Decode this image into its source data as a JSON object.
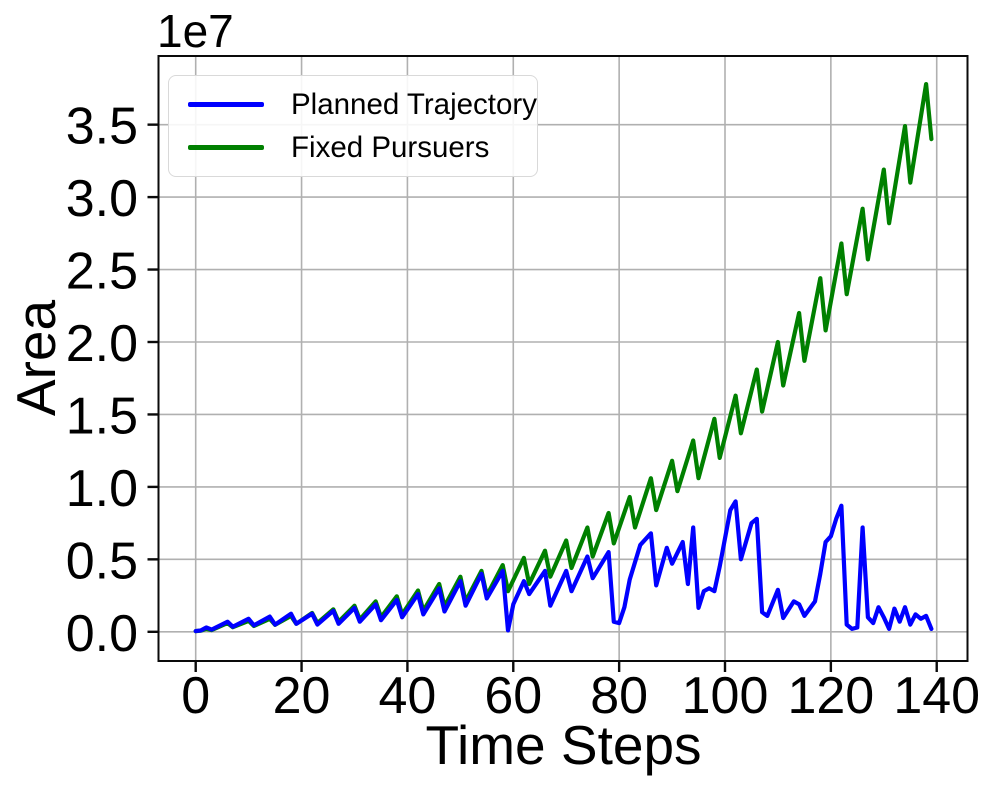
{
  "figure": {
    "background": "#ffffff",
    "offset_text": "1e7",
    "xlabel": "Time Steps",
    "ylabel": "Area"
  },
  "legend": {
    "position": "upper left",
    "items": [
      {
        "label": "Planned Trajectory",
        "color": "#0000ff"
      },
      {
        "label": "Fixed Pursuers",
        "color": "#008000"
      }
    ]
  },
  "chart_data": {
    "type": "line",
    "title": "",
    "xlabel": "Time Steps",
    "ylabel": "Area",
    "y_offset_multiplier": "1e7",
    "grid": true,
    "legend_position": "upper left",
    "xlim": [
      -7,
      146
    ],
    "ylim_1e7": [
      -0.2,
      3.97
    ],
    "xticks": [
      0,
      20,
      40,
      60,
      80,
      100,
      120,
      140
    ],
    "yticks_1e7": [
      0,
      0.5,
      1.0,
      1.5,
      2.0,
      2.5,
      3.0,
      3.5
    ],
    "ytick_labels": [
      "0.0",
      "0.5",
      "1.0",
      "1.5",
      "2.0",
      "2.5",
      "3.0",
      "3.5"
    ],
    "y_units_note": "series y-values are in units of 1e7 (Area)",
    "series": [
      {
        "name": "Planned Trajectory",
        "color": "#0000ff",
        "points_1e7": [
          [
            0,
            0.005
          ],
          [
            1,
            0.01
          ],
          [
            2,
            0.03
          ],
          [
            3,
            0.015
          ],
          [
            6,
            0.07
          ],
          [
            7,
            0.035
          ],
          [
            10,
            0.09
          ],
          [
            11,
            0.045
          ],
          [
            14,
            0.105
          ],
          [
            15,
            0.05
          ],
          [
            18,
            0.125
          ],
          [
            19,
            0.055
          ],
          [
            22,
            0.125
          ],
          [
            23,
            0.05
          ],
          [
            26,
            0.145
          ],
          [
            27,
            0.055
          ],
          [
            30,
            0.165
          ],
          [
            31,
            0.07
          ],
          [
            34,
            0.19
          ],
          [
            35,
            0.08
          ],
          [
            38,
            0.22
          ],
          [
            39,
            0.1
          ],
          [
            42,
            0.26
          ],
          [
            43,
            0.12
          ],
          [
            46,
            0.3
          ],
          [
            47,
            0.14
          ],
          [
            50,
            0.35
          ],
          [
            51,
            0.18
          ],
          [
            54,
            0.4
          ],
          [
            55,
            0.23
          ],
          [
            58,
            0.42
          ],
          [
            59,
            0.01
          ],
          [
            60,
            0.19
          ],
          [
            62,
            0.35
          ],
          [
            63,
            0.26
          ],
          [
            66,
            0.42
          ],
          [
            67,
            0.18
          ],
          [
            70,
            0.42
          ],
          [
            71,
            0.28
          ],
          [
            74,
            0.52
          ],
          [
            75,
            0.37
          ],
          [
            78,
            0.55
          ],
          [
            79,
            0.07
          ],
          [
            80,
            0.06
          ],
          [
            81,
            0.17
          ],
          [
            82,
            0.36
          ],
          [
            84,
            0.6
          ],
          [
            86,
            0.68
          ],
          [
            87,
            0.32
          ],
          [
            89,
            0.58
          ],
          [
            90,
            0.47
          ],
          [
            92,
            0.62
          ],
          [
            93,
            0.33
          ],
          [
            94,
            0.72
          ],
          [
            95,
            0.165
          ],
          [
            96,
            0.28
          ],
          [
            97,
            0.3
          ],
          [
            98,
            0.28
          ],
          [
            99,
            0.45
          ],
          [
            101,
            0.84
          ],
          [
            102,
            0.9
          ],
          [
            103,
            0.5
          ],
          [
            105,
            0.75
          ],
          [
            106,
            0.78
          ],
          [
            107,
            0.135
          ],
          [
            108,
            0.11
          ],
          [
            110,
            0.29
          ],
          [
            111,
            0.095
          ],
          [
            113,
            0.21
          ],
          [
            114,
            0.19
          ],
          [
            115,
            0.11
          ],
          [
            117,
            0.21
          ],
          [
            118,
            0.4
          ],
          [
            119,
            0.62
          ],
          [
            120,
            0.66
          ],
          [
            121,
            0.78
          ],
          [
            122,
            0.87
          ],
          [
            123,
            0.05
          ],
          [
            124,
            0.02
          ],
          [
            125,
            0.03
          ],
          [
            126,
            0.72
          ],
          [
            127,
            0.1
          ],
          [
            128,
            0.06
          ],
          [
            129,
            0.17
          ],
          [
            130,
            0.1
          ],
          [
            131,
            0.02
          ],
          [
            132,
            0.16
          ],
          [
            133,
            0.07
          ],
          [
            134,
            0.17
          ],
          [
            135,
            0.05
          ],
          [
            136,
            0.12
          ],
          [
            137,
            0.09
          ],
          [
            138,
            0.11
          ],
          [
            139,
            0.02
          ]
        ]
      },
      {
        "name": "Fixed Pursuers",
        "color": "#008000",
        "points_1e7": [
          [
            0,
            0.005
          ],
          [
            1,
            0.008
          ],
          [
            2,
            0.02
          ],
          [
            3,
            0.012
          ],
          [
            6,
            0.06
          ],
          [
            7,
            0.032
          ],
          [
            10,
            0.075
          ],
          [
            11,
            0.04
          ],
          [
            14,
            0.09
          ],
          [
            15,
            0.048
          ],
          [
            18,
            0.11
          ],
          [
            19,
            0.055
          ],
          [
            22,
            0.13
          ],
          [
            23,
            0.06
          ],
          [
            26,
            0.155
          ],
          [
            27,
            0.07
          ],
          [
            30,
            0.18
          ],
          [
            31,
            0.085
          ],
          [
            34,
            0.21
          ],
          [
            35,
            0.1
          ],
          [
            38,
            0.245
          ],
          [
            39,
            0.12
          ],
          [
            42,
            0.285
          ],
          [
            43,
            0.145
          ],
          [
            46,
            0.33
          ],
          [
            47,
            0.175
          ],
          [
            50,
            0.38
          ],
          [
            51,
            0.21
          ],
          [
            54,
            0.42
          ],
          [
            55,
            0.25
          ],
          [
            58,
            0.46
          ],
          [
            59,
            0.28
          ],
          [
            62,
            0.51
          ],
          [
            63,
            0.33
          ],
          [
            66,
            0.56
          ],
          [
            67,
            0.38
          ],
          [
            70,
            0.63
          ],
          [
            71,
            0.44
          ],
          [
            74,
            0.72
          ],
          [
            75,
            0.52
          ],
          [
            78,
            0.82
          ],
          [
            79,
            0.61
          ],
          [
            82,
            0.93
          ],
          [
            83,
            0.72
          ],
          [
            86,
            1.06
          ],
          [
            87,
            0.84
          ],
          [
            90,
            1.18
          ],
          [
            91,
            0.97
          ],
          [
            94,
            1.32
          ],
          [
            95,
            1.06
          ],
          [
            98,
            1.47
          ],
          [
            99,
            1.2
          ],
          [
            102,
            1.63
          ],
          [
            103,
            1.37
          ],
          [
            106,
            1.81
          ],
          [
            107,
            1.52
          ],
          [
            110,
            2.0
          ],
          [
            111,
            1.7
          ],
          [
            114,
            2.2
          ],
          [
            115,
            1.87
          ],
          [
            118,
            2.44
          ],
          [
            119,
            2.08
          ],
          [
            122,
            2.68
          ],
          [
            123,
            2.33
          ],
          [
            126,
            2.92
          ],
          [
            127,
            2.57
          ],
          [
            130,
            3.19
          ],
          [
            131,
            2.82
          ],
          [
            134,
            3.49
          ],
          [
            135,
            3.1
          ],
          [
            138,
            3.78
          ],
          [
            139,
            3.4
          ]
        ]
      }
    ],
    "style": {
      "grid_color": "#b0b0b0",
      "spine_color": "#0a0a0a",
      "tick_color": "#0a0a0a",
      "text_color": "#000000",
      "line_width": 4.2
    }
  }
}
